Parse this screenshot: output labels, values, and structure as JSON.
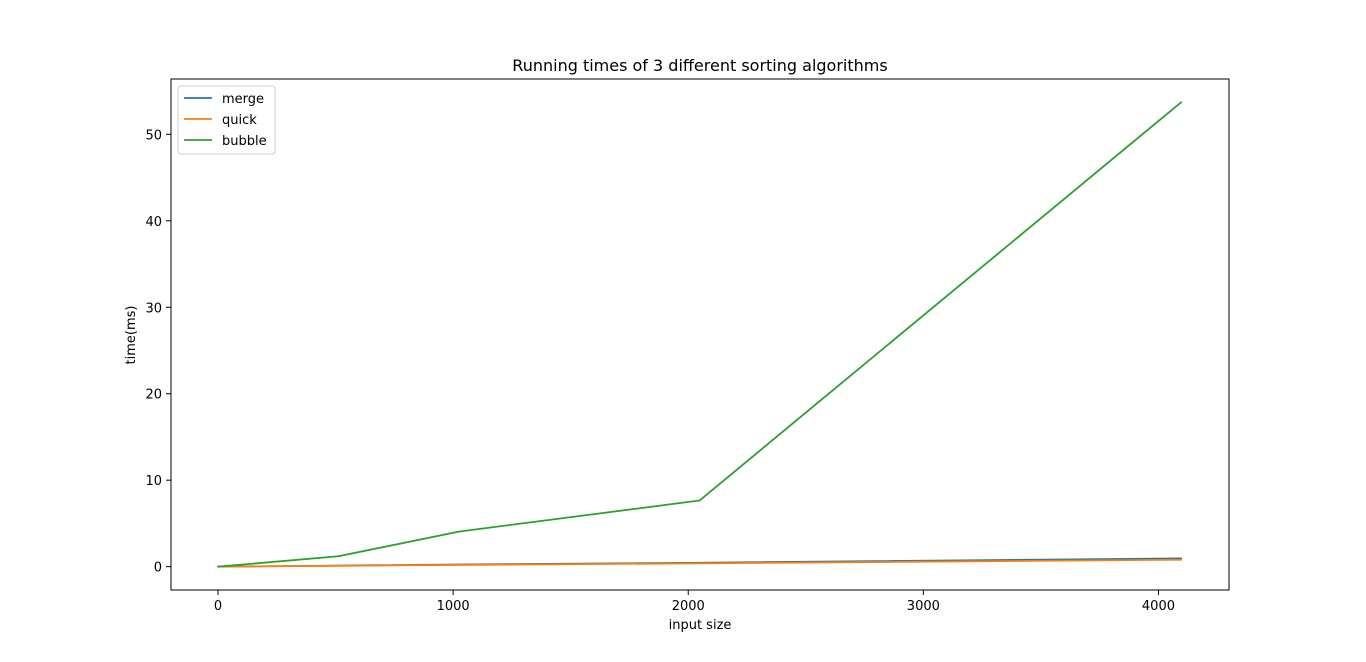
{
  "chart_data": {
    "type": "line",
    "title": "Running times of 3 different sorting algorithms",
    "xlabel": "input size",
    "ylabel": "time(ms)",
    "xlim": [
      -200,
      4300
    ],
    "ylim": [
      -2.7,
      56.4
    ],
    "xticks": [
      0,
      1000,
      2000,
      3000,
      4000
    ],
    "yticks": [
      0,
      10,
      20,
      30,
      40,
      50
    ],
    "x": [
      1,
      512,
      1024,
      2048,
      4096
    ],
    "series": [
      {
        "name": "merge",
        "color": "#1f77b4",
        "values": [
          0.0,
          0.12,
          0.25,
          0.45,
          0.95
        ]
      },
      {
        "name": "quick",
        "color": "#ff7f0e",
        "values": [
          0.0,
          0.1,
          0.2,
          0.38,
          0.8
        ]
      },
      {
        "name": "bubble",
        "color": "#2ca02c",
        "values": [
          0.0,
          1.2,
          4.05,
          7.65,
          53.7
        ]
      }
    ],
    "legend_position": "top-left",
    "grid": false
  }
}
